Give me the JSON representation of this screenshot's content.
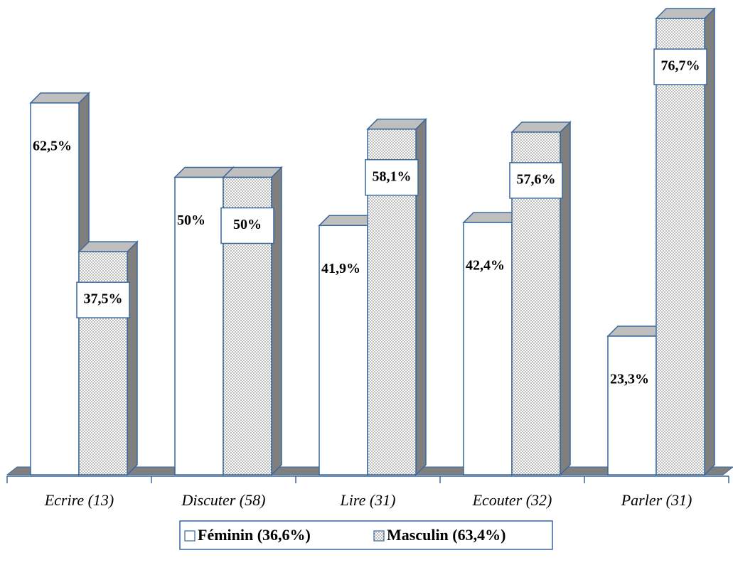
{
  "chart_data": {
    "type": "bar3d",
    "categories": [
      "Ecrire (13)",
      "Discuter (58)",
      "Lire (31)",
      "Ecouter (32)",
      "Parler (31)"
    ],
    "series": [
      {
        "name": "Féminin (36,6%)",
        "color": "#ffffff",
        "values": [
          62.5,
          50,
          41.9,
          42.4,
          23.3
        ],
        "value_labels": [
          "62,5%",
          "50%",
          "41,9%",
          "42,4%",
          "23,3%"
        ]
      },
      {
        "name": "Masculin (63,4%)",
        "color": "#ffffff",
        "pattern": "dots",
        "values": [
          37.5,
          50,
          58.1,
          57.6,
          76.7
        ],
        "value_labels": [
          "37,5%",
          "50%",
          "58,1%",
          "57,6%",
          "76,7%"
        ]
      }
    ],
    "edge_color": "#3a679c",
    "side_color": "#7f7f7f",
    "top_color": "#bfbfbf",
    "legend": "bottom"
  }
}
